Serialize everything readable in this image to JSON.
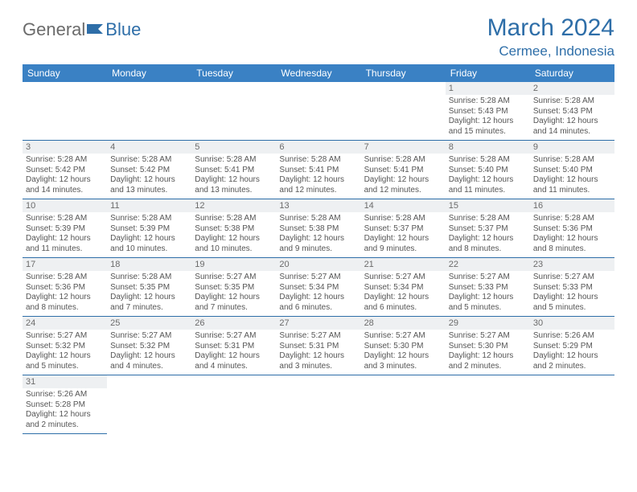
{
  "brand": {
    "part1": "General",
    "part2": "Blue"
  },
  "title": "March 2024",
  "location": "Cermee, Indonesia",
  "colors": {
    "header_bg": "#3a81c4",
    "header_text": "#ffffff",
    "title_color": "#2e6ea8",
    "daynum_bg": "#eef0f2",
    "body_text": "#555555",
    "rule": "#2e6ea8"
  },
  "weekdays": [
    "Sunday",
    "Monday",
    "Tuesday",
    "Wednesday",
    "Thursday",
    "Friday",
    "Saturday"
  ],
  "weeks": [
    [
      null,
      null,
      null,
      null,
      null,
      {
        "n": "1",
        "sr": "Sunrise: 5:28 AM",
        "ss": "Sunset: 5:43 PM",
        "d1": "Daylight: 12 hours",
        "d2": "and 15 minutes."
      },
      {
        "n": "2",
        "sr": "Sunrise: 5:28 AM",
        "ss": "Sunset: 5:43 PM",
        "d1": "Daylight: 12 hours",
        "d2": "and 14 minutes."
      }
    ],
    [
      {
        "n": "3",
        "sr": "Sunrise: 5:28 AM",
        "ss": "Sunset: 5:42 PM",
        "d1": "Daylight: 12 hours",
        "d2": "and 14 minutes."
      },
      {
        "n": "4",
        "sr": "Sunrise: 5:28 AM",
        "ss": "Sunset: 5:42 PM",
        "d1": "Daylight: 12 hours",
        "d2": "and 13 minutes."
      },
      {
        "n": "5",
        "sr": "Sunrise: 5:28 AM",
        "ss": "Sunset: 5:41 PM",
        "d1": "Daylight: 12 hours",
        "d2": "and 13 minutes."
      },
      {
        "n": "6",
        "sr": "Sunrise: 5:28 AM",
        "ss": "Sunset: 5:41 PM",
        "d1": "Daylight: 12 hours",
        "d2": "and 12 minutes."
      },
      {
        "n": "7",
        "sr": "Sunrise: 5:28 AM",
        "ss": "Sunset: 5:41 PM",
        "d1": "Daylight: 12 hours",
        "d2": "and 12 minutes."
      },
      {
        "n": "8",
        "sr": "Sunrise: 5:28 AM",
        "ss": "Sunset: 5:40 PM",
        "d1": "Daylight: 12 hours",
        "d2": "and 11 minutes."
      },
      {
        "n": "9",
        "sr": "Sunrise: 5:28 AM",
        "ss": "Sunset: 5:40 PM",
        "d1": "Daylight: 12 hours",
        "d2": "and 11 minutes."
      }
    ],
    [
      {
        "n": "10",
        "sr": "Sunrise: 5:28 AM",
        "ss": "Sunset: 5:39 PM",
        "d1": "Daylight: 12 hours",
        "d2": "and 11 minutes."
      },
      {
        "n": "11",
        "sr": "Sunrise: 5:28 AM",
        "ss": "Sunset: 5:39 PM",
        "d1": "Daylight: 12 hours",
        "d2": "and 10 minutes."
      },
      {
        "n": "12",
        "sr": "Sunrise: 5:28 AM",
        "ss": "Sunset: 5:38 PM",
        "d1": "Daylight: 12 hours",
        "d2": "and 10 minutes."
      },
      {
        "n": "13",
        "sr": "Sunrise: 5:28 AM",
        "ss": "Sunset: 5:38 PM",
        "d1": "Daylight: 12 hours",
        "d2": "and 9 minutes."
      },
      {
        "n": "14",
        "sr": "Sunrise: 5:28 AM",
        "ss": "Sunset: 5:37 PM",
        "d1": "Daylight: 12 hours",
        "d2": "and 9 minutes."
      },
      {
        "n": "15",
        "sr": "Sunrise: 5:28 AM",
        "ss": "Sunset: 5:37 PM",
        "d1": "Daylight: 12 hours",
        "d2": "and 8 minutes."
      },
      {
        "n": "16",
        "sr": "Sunrise: 5:28 AM",
        "ss": "Sunset: 5:36 PM",
        "d1": "Daylight: 12 hours",
        "d2": "and 8 minutes."
      }
    ],
    [
      {
        "n": "17",
        "sr": "Sunrise: 5:28 AM",
        "ss": "Sunset: 5:36 PM",
        "d1": "Daylight: 12 hours",
        "d2": "and 8 minutes."
      },
      {
        "n": "18",
        "sr": "Sunrise: 5:28 AM",
        "ss": "Sunset: 5:35 PM",
        "d1": "Daylight: 12 hours",
        "d2": "and 7 minutes."
      },
      {
        "n": "19",
        "sr": "Sunrise: 5:27 AM",
        "ss": "Sunset: 5:35 PM",
        "d1": "Daylight: 12 hours",
        "d2": "and 7 minutes."
      },
      {
        "n": "20",
        "sr": "Sunrise: 5:27 AM",
        "ss": "Sunset: 5:34 PM",
        "d1": "Daylight: 12 hours",
        "d2": "and 6 minutes."
      },
      {
        "n": "21",
        "sr": "Sunrise: 5:27 AM",
        "ss": "Sunset: 5:34 PM",
        "d1": "Daylight: 12 hours",
        "d2": "and 6 minutes."
      },
      {
        "n": "22",
        "sr": "Sunrise: 5:27 AM",
        "ss": "Sunset: 5:33 PM",
        "d1": "Daylight: 12 hours",
        "d2": "and 5 minutes."
      },
      {
        "n": "23",
        "sr": "Sunrise: 5:27 AM",
        "ss": "Sunset: 5:33 PM",
        "d1": "Daylight: 12 hours",
        "d2": "and 5 minutes."
      }
    ],
    [
      {
        "n": "24",
        "sr": "Sunrise: 5:27 AM",
        "ss": "Sunset: 5:32 PM",
        "d1": "Daylight: 12 hours",
        "d2": "and 5 minutes."
      },
      {
        "n": "25",
        "sr": "Sunrise: 5:27 AM",
        "ss": "Sunset: 5:32 PM",
        "d1": "Daylight: 12 hours",
        "d2": "and 4 minutes."
      },
      {
        "n": "26",
        "sr": "Sunrise: 5:27 AM",
        "ss": "Sunset: 5:31 PM",
        "d1": "Daylight: 12 hours",
        "d2": "and 4 minutes."
      },
      {
        "n": "27",
        "sr": "Sunrise: 5:27 AM",
        "ss": "Sunset: 5:31 PM",
        "d1": "Daylight: 12 hours",
        "d2": "and 3 minutes."
      },
      {
        "n": "28",
        "sr": "Sunrise: 5:27 AM",
        "ss": "Sunset: 5:30 PM",
        "d1": "Daylight: 12 hours",
        "d2": "and 3 minutes."
      },
      {
        "n": "29",
        "sr": "Sunrise: 5:27 AM",
        "ss": "Sunset: 5:30 PM",
        "d1": "Daylight: 12 hours",
        "d2": "and 2 minutes."
      },
      {
        "n": "30",
        "sr": "Sunrise: 5:26 AM",
        "ss": "Sunset: 5:29 PM",
        "d1": "Daylight: 12 hours",
        "d2": "and 2 minutes."
      }
    ],
    [
      {
        "n": "31",
        "sr": "Sunrise: 5:26 AM",
        "ss": "Sunset: 5:28 PM",
        "d1": "Daylight: 12 hours",
        "d2": "and 2 minutes."
      },
      null,
      null,
      null,
      null,
      null,
      null
    ]
  ]
}
